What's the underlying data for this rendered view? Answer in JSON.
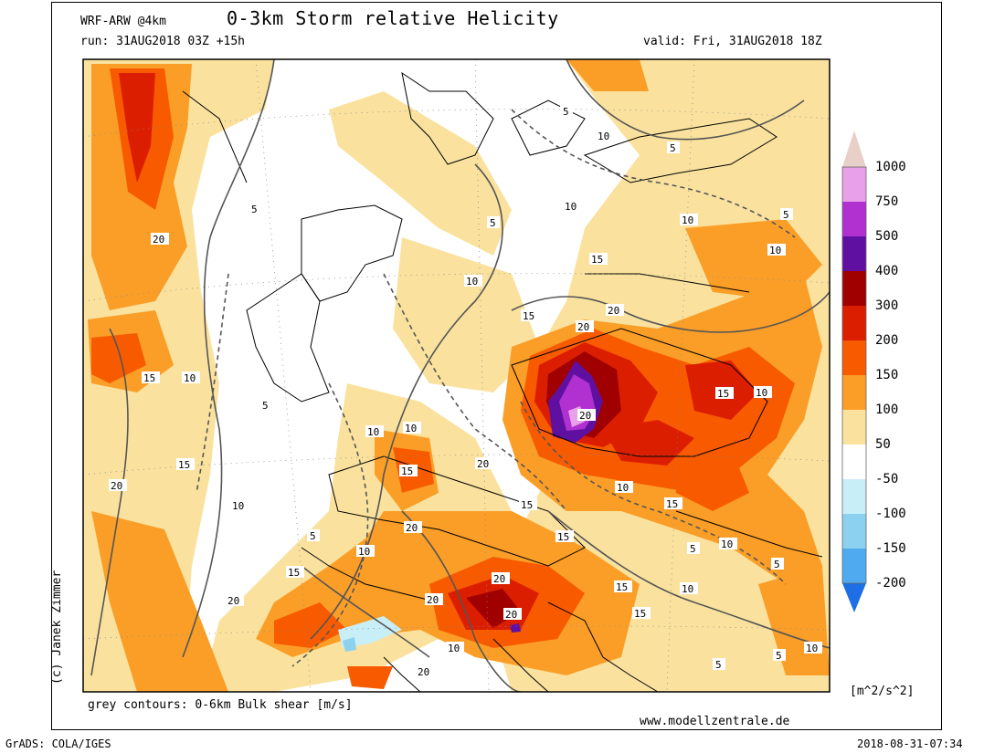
{
  "header": {
    "model": "WRF-ARW @4km",
    "title": "0-3km Storm relative Helicity",
    "run": "run: 31AUG2018 03Z +15h",
    "valid": "valid: Fri, 31AUG2018 18Z"
  },
  "footer": {
    "credit": "(c) Janek Zimmer",
    "contours_note": "grey contours: 0-6km Bulk shear [m/s]",
    "website": "www.modellzentrale.de",
    "software": "GrADS: COLA/IGES",
    "timestamp": "2018-08-31-07:34"
  },
  "colorbar": {
    "units": "[m^2/s^2]",
    "levels": [
      "1000",
      "750",
      "500",
      "400",
      "300",
      "200",
      "150",
      "100",
      "50",
      "-50",
      "-100",
      "-150",
      "-200"
    ],
    "colors": [
      "#e8a0e8",
      "#b030d0",
      "#6010a0",
      "#a00000",
      "#dc1e00",
      "#f85a00",
      "#fa9e28",
      "#fae29e",
      "#ffffff",
      "#c8eef8",
      "#8cd2f0",
      "#50aaf0",
      "#1e6ee6"
    ],
    "top_color": "#e8d0c8"
  },
  "contour_labels": [
    "5",
    "10",
    "15",
    "20"
  ],
  "map": {
    "field": "0-3km Storm relative Helicity",
    "overlay": "0-6km Bulk shear",
    "region": "Central Europe"
  }
}
